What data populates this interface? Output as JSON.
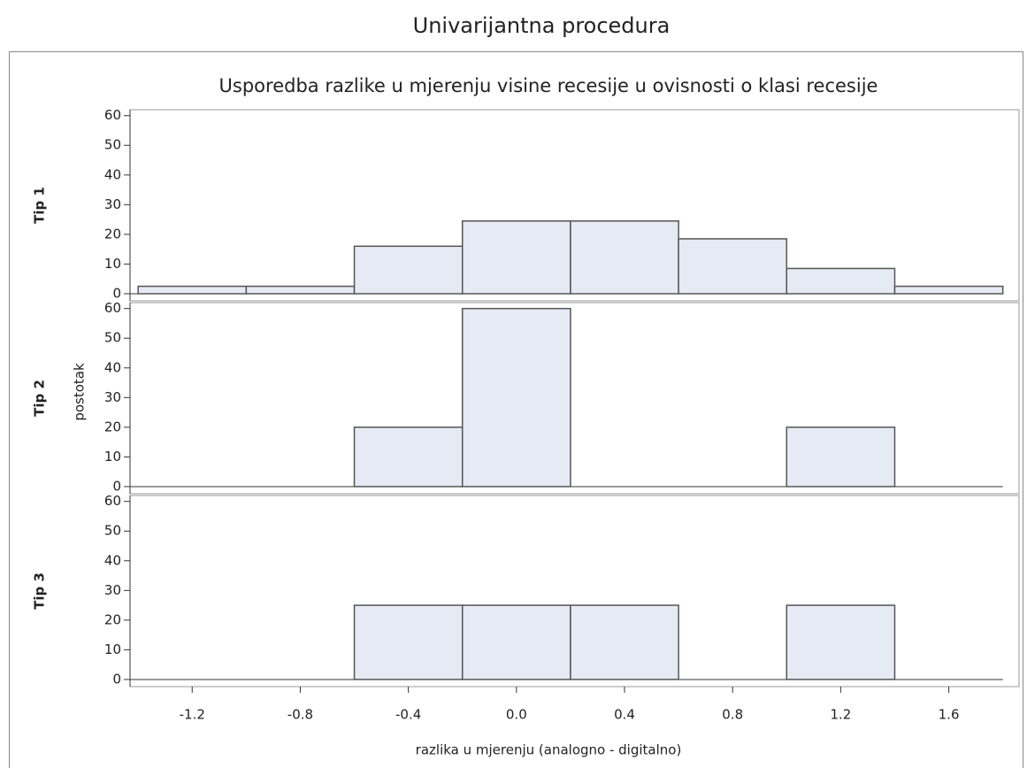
{
  "heading": "Univarijantna procedura",
  "chart_data": {
    "type": "histogram",
    "title": "Usporedba razlike u mjerenju visine recesije u ovisnosti o klasi recesije",
    "xlabel": "razlika u mjerenju (analogno - digitalno)",
    "ylabel": "postotak",
    "bins": [
      -1.4,
      -1.0,
      -0.6,
      -0.2,
      0.2,
      0.6,
      1.0,
      1.4,
      1.8
    ],
    "color": "#e6eaf4",
    "series": [
      {
        "name": "Tip 1",
        "values": [
          2.5,
          2.5,
          16,
          24.5,
          24.5,
          18.5,
          8.5,
          2.5
        ]
      },
      {
        "name": "Tip 2",
        "values": [
          0,
          0,
          20,
          60,
          0,
          0,
          20,
          0
        ]
      },
      {
        "name": "Tip 3",
        "values": [
          0,
          0,
          25,
          25,
          25,
          0,
          25,
          0
        ]
      }
    ],
    "xlim": [
      -1.43,
      1.86
    ],
    "xticks": [
      -1.2,
      -0.8,
      -0.4,
      {
        "value": 0,
        "label": "0.0"
      },
      0.4,
      0.8,
      1.2,
      1.6
    ],
    "ylim": [
      -2.4,
      62
    ],
    "yticks": [
      0,
      10,
      20,
      30,
      40,
      50,
      60
    ]
  }
}
